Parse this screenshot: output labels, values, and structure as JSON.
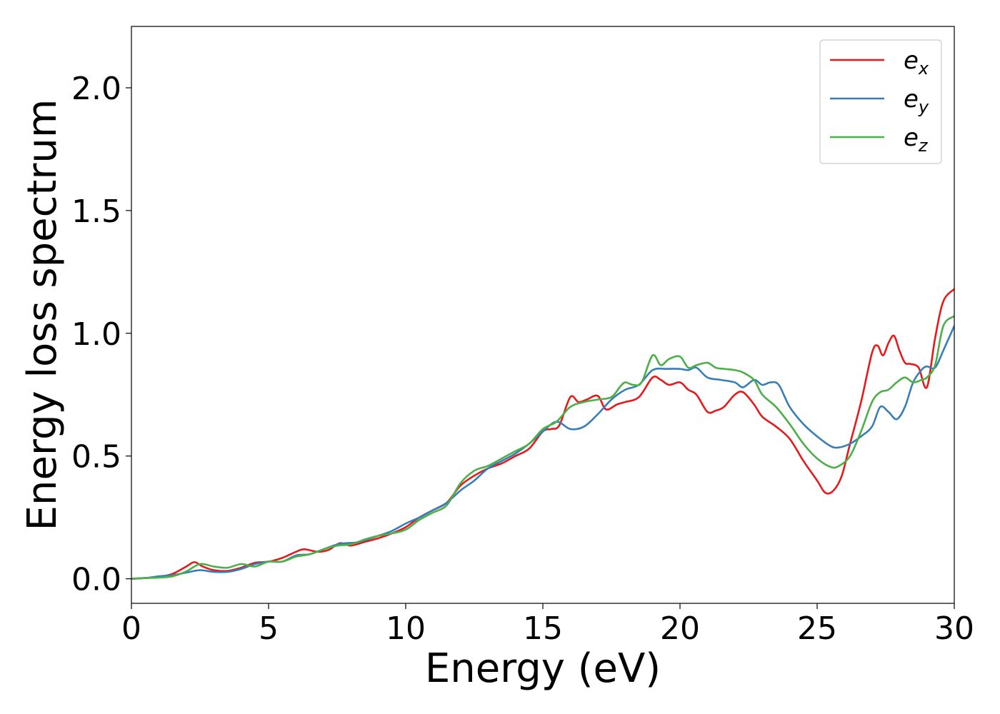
{
  "chart_data": {
    "type": "line",
    "xlabel": "Energy (eV)",
    "ylabel": "Energy loss spectrum",
    "xlim": [
      0,
      30
    ],
    "ylim": [
      -0.1,
      2.25
    ],
    "xticks": [
      "0",
      "5",
      "10",
      "15",
      "20",
      "25",
      "30"
    ],
    "yticks": [
      "0.0",
      "0.5",
      "1.0",
      "1.5",
      "2.0"
    ],
    "grid": false,
    "legend_position": "top-right",
    "series": [
      {
        "name": "e",
        "subscript": "x",
        "color": "#e41a1c",
        "x": [
          0,
          0.5,
          1,
          1.5,
          2,
          2.3,
          2.6,
          3,
          3.5,
          4,
          4.5,
          5,
          5.5,
          6,
          6.3,
          6.8,
          7.2,
          7.6,
          8,
          8.5,
          9,
          9.5,
          10,
          10.5,
          11,
          11.5,
          12,
          12.5,
          13,
          13.5,
          14,
          14.5,
          15,
          15.3,
          15.6,
          16,
          16.3,
          16.6,
          17,
          17.3,
          17.7,
          18,
          18.5,
          19,
          19.3,
          19.6,
          20,
          20.3,
          20.6,
          21,
          21.3,
          21.6,
          22,
          22.3,
          22.7,
          23,
          23.5,
          24,
          24.5,
          25,
          25.3,
          25.6,
          25.9,
          26.2,
          26.6,
          27,
          27.2,
          27.4,
          27.6,
          27.8,
          28,
          28.2,
          28.4,
          28.7,
          29,
          29.3,
          29.6,
          30
        ],
        "y": [
          0,
          0.003,
          0.008,
          0.02,
          0.05,
          0.068,
          0.05,
          0.035,
          0.032,
          0.045,
          0.065,
          0.07,
          0.085,
          0.11,
          0.12,
          0.11,
          0.118,
          0.145,
          0.135,
          0.15,
          0.165,
          0.185,
          0.21,
          0.25,
          0.28,
          0.31,
          0.38,
          0.42,
          0.45,
          0.47,
          0.5,
          0.53,
          0.6,
          0.61,
          0.625,
          0.74,
          0.72,
          0.73,
          0.745,
          0.69,
          0.71,
          0.72,
          0.74,
          0.82,
          0.81,
          0.79,
          0.8,
          0.77,
          0.75,
          0.68,
          0.685,
          0.7,
          0.75,
          0.76,
          0.71,
          0.66,
          0.62,
          0.57,
          0.48,
          0.4,
          0.35,
          0.36,
          0.42,
          0.55,
          0.72,
          0.92,
          0.95,
          0.91,
          0.96,
          0.99,
          0.93,
          0.88,
          0.875,
          0.86,
          0.78,
          0.98,
          1.13,
          1.18
        ]
      },
      {
        "name": "e",
        "subscript": "y",
        "color": "#377eb8",
        "x": [
          0,
          0.5,
          1,
          1.5,
          2,
          2.5,
          3,
          3.5,
          4,
          4.5,
          5,
          5.5,
          6,
          6.5,
          7,
          7.5,
          7.8,
          8.2,
          8.6,
          9,
          9.5,
          10,
          10.5,
          11,
          11.5,
          12,
          12.5,
          13,
          13.5,
          14,
          14.5,
          15,
          15.5,
          16,
          16.5,
          17,
          17.5,
          18,
          18.5,
          19,
          19.5,
          20,
          20.3,
          20.6,
          21,
          21.5,
          22,
          22.3,
          22.7,
          23,
          23.3,
          23.6,
          24,
          24.5,
          25,
          25.5,
          25.8,
          26.2,
          26.6,
          27,
          27.3,
          27.6,
          27.9,
          28.2,
          28.5,
          28.8,
          29,
          29.3,
          29.6,
          30
        ],
        "y": [
          0,
          0.003,
          0.01,
          0.015,
          0.025,
          0.035,
          0.028,
          0.028,
          0.04,
          0.06,
          0.07,
          0.07,
          0.095,
          0.1,
          0.12,
          0.14,
          0.145,
          0.148,
          0.16,
          0.175,
          0.195,
          0.225,
          0.25,
          0.28,
          0.31,
          0.36,
          0.4,
          0.45,
          0.48,
          0.51,
          0.55,
          0.6,
          0.64,
          0.61,
          0.62,
          0.67,
          0.73,
          0.77,
          0.79,
          0.85,
          0.855,
          0.855,
          0.85,
          0.86,
          0.82,
          0.81,
          0.8,
          0.78,
          0.81,
          0.79,
          0.8,
          0.79,
          0.7,
          0.63,
          0.58,
          0.54,
          0.535,
          0.55,
          0.58,
          0.62,
          0.7,
          0.68,
          0.65,
          0.7,
          0.8,
          0.85,
          0.865,
          0.86,
          0.93,
          1.03
        ]
      },
      {
        "name": "e",
        "subscript": "z",
        "color": "#4daf4a",
        "x": [
          0,
          0.5,
          1,
          1.5,
          2,
          2.5,
          3,
          3.5,
          4,
          4.5,
          5,
          5.5,
          6,
          6.5,
          7,
          7.5,
          8,
          8.5,
          9,
          9.5,
          10,
          10.5,
          11,
          11.5,
          12,
          12.5,
          13,
          13.5,
          14,
          14.5,
          15,
          15.5,
          16,
          16.5,
          17,
          17.5,
          17.8,
          18,
          18.3,
          18.6,
          19,
          19.3,
          19.6,
          20,
          20.3,
          20.6,
          21,
          21.3,
          21.6,
          22,
          22.3,
          22.7,
          23,
          23.5,
          24,
          24.5,
          25,
          25.5,
          25.8,
          26.2,
          26.6,
          27,
          27.3,
          27.6,
          27.9,
          28.2,
          28.5,
          28.8,
          29,
          29.3,
          29.6,
          30
        ],
        "y": [
          0,
          0.003,
          0.005,
          0.01,
          0.03,
          0.06,
          0.05,
          0.045,
          0.06,
          0.05,
          0.07,
          0.07,
          0.09,
          0.1,
          0.12,
          0.135,
          0.14,
          0.16,
          0.175,
          0.185,
          0.2,
          0.24,
          0.27,
          0.3,
          0.39,
          0.44,
          0.46,
          0.49,
          0.52,
          0.55,
          0.61,
          0.64,
          0.7,
          0.72,
          0.73,
          0.74,
          0.78,
          0.8,
          0.79,
          0.8,
          0.91,
          0.87,
          0.895,
          0.905,
          0.86,
          0.87,
          0.88,
          0.86,
          0.855,
          0.85,
          0.84,
          0.81,
          0.75,
          0.7,
          0.63,
          0.55,
          0.49,
          0.455,
          0.46,
          0.5,
          0.6,
          0.72,
          0.76,
          0.77,
          0.8,
          0.82,
          0.8,
          0.81,
          0.82,
          0.87,
          1.03,
          1.07
        ]
      }
    ]
  }
}
